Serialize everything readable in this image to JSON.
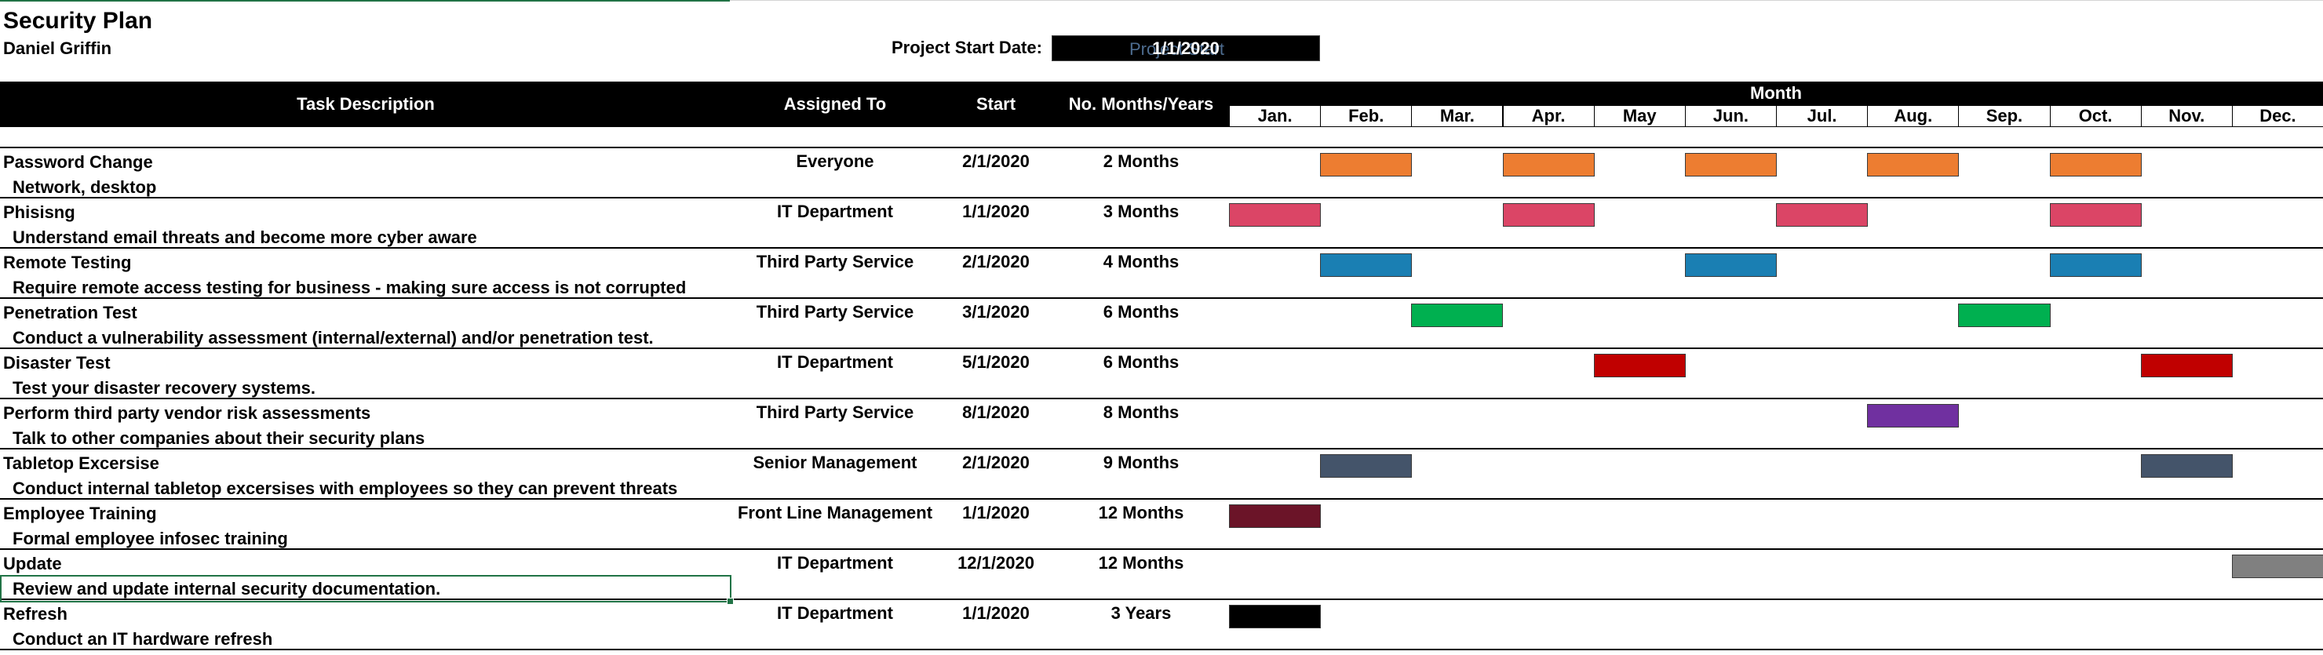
{
  "sheet": {
    "title": "Security Plan",
    "author": "Daniel Griffin",
    "project_start_label": "Project Start Date:",
    "project_start_value": "1/1/2020",
    "project_start_ghost": "Project Start"
  },
  "columns": {
    "task": "Task Description",
    "assigned": "Assigned To",
    "start": "Start",
    "duration": "No. Months/Years",
    "month": "Month"
  },
  "months": [
    "Jan.",
    "Feb.",
    "Mar.",
    "Apr.",
    "May",
    "Jun.",
    "Jul.",
    "Aug.",
    "Sep.",
    "Oct.",
    "Nov.",
    "Dec."
  ],
  "tasks": [
    {
      "name": "Password Change",
      "desc": "Network, desktop",
      "assigned": "Everyone",
      "start": "2/1/2020",
      "duration": "2 Months",
      "color": "#ed7d31",
      "months": [
        1,
        3,
        5,
        7,
        9
      ]
    },
    {
      "name": "Phisisng",
      "desc": "Understand email threats and become more cyber aware",
      "assigned": "IT Department",
      "start": "1/1/2020",
      "duration": "3 Months",
      "color": "#db4566",
      "months": [
        0,
        3,
        6,
        9
      ]
    },
    {
      "name": "Remote Testing",
      "desc": "Require remote access testing for business - making sure access is not corrupted",
      "assigned": "Third Party Service",
      "start": "2/1/2020",
      "duration": "4 Months",
      "color": "#1a7fb3",
      "months": [
        1,
        5,
        9
      ]
    },
    {
      "name": "Penetration Test",
      "desc": "Conduct a vulnerability assessment (internal/external) and/or penetration test.",
      "assigned": "Third Party Service",
      "start": "3/1/2020",
      "duration": "6 Months",
      "color": "#00b050",
      "months": [
        2,
        8
      ]
    },
    {
      "name": "Disaster Test",
      "desc": "Test your disaster recovery systems.",
      "assigned": "IT Department",
      "start": "5/1/2020",
      "duration": "6 Months",
      "color": "#c00000",
      "months": [
        4,
        10
      ]
    },
    {
      "name": "Perform third party vendor risk assessments",
      "desc": "Talk to other companies about their security plans",
      "assigned": "Third Party Service",
      "start": "8/1/2020",
      "duration": "8 Months",
      "color": "#7030a0",
      "months": [
        7
      ]
    },
    {
      "name": "Tabletop Excersise",
      "desc": "Conduct internal tabletop excersises with employees so they can prevent threats",
      "assigned": "Senior Management",
      "start": "2/1/2020",
      "duration": "9 Months",
      "color": "#44546a",
      "months": [
        1,
        10
      ]
    },
    {
      "name": "Employee Training",
      "desc": "Formal employee infosec training",
      "assigned": "Front Line Management",
      "start": "1/1/2020",
      "duration": "12 Months",
      "color": "#6b1428",
      "months": [
        0
      ]
    },
    {
      "name": "Update",
      "desc": "Review and update internal security documentation.",
      "assigned": "IT Department",
      "start": "12/1/2020",
      "duration": "12 Months",
      "color": "#808080",
      "months": [
        11
      ]
    },
    {
      "name": "Refresh",
      "desc": "Conduct an IT hardware refresh",
      "assigned": "IT Department",
      "start": "1/1/2020",
      "duration": "3 Years",
      "color": "#000000",
      "months": [
        0
      ]
    }
  ]
}
